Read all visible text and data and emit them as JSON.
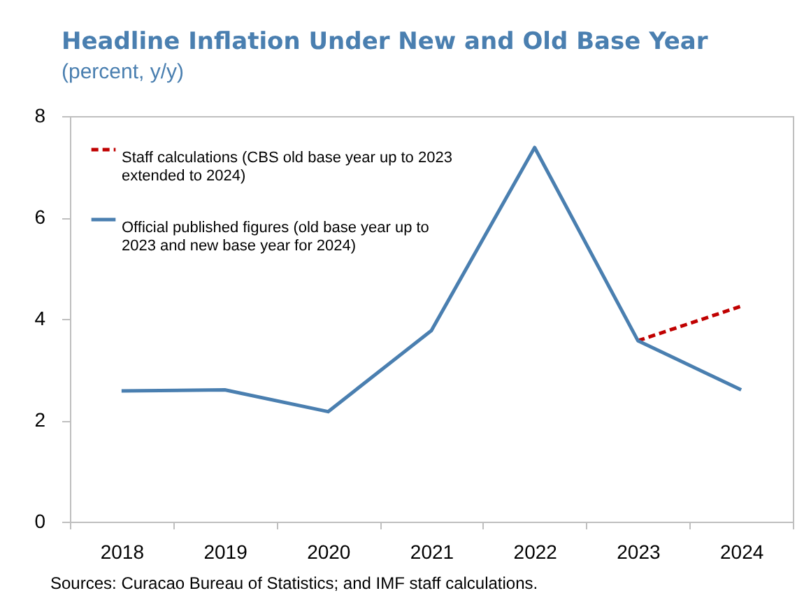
{
  "chart_data": {
    "type": "line",
    "title": "Headline Inflation Under New and Old Base Year",
    "subtitle": "(percent, y/y)",
    "categories": [
      "2018",
      "2019",
      "2020",
      "2021",
      "2022",
      "2023",
      "2024"
    ],
    "series": [
      {
        "name": "Staff calculations (CBS old base year up to 2023 extended to 2024)",
        "color": "#c00000",
        "line_style": "dashed",
        "values": [
          null,
          null,
          null,
          null,
          null,
          3.57,
          4.25
        ]
      },
      {
        "name": "Official published figures (old base year up to 2023 and new base year for 2024)",
        "color": "#4a7fb0",
        "line_style": "solid",
        "values": [
          2.58,
          2.6,
          2.17,
          3.77,
          7.38,
          3.57,
          2.6
        ]
      }
    ],
    "ylim": [
      0,
      8
    ],
    "yticks": [
      0,
      2,
      4,
      6,
      8
    ],
    "grid": false,
    "legend": "top left",
    "annotations": [
      "Sources: Curacao Bureau of Statistics; and IMF staff calculations."
    ]
  }
}
